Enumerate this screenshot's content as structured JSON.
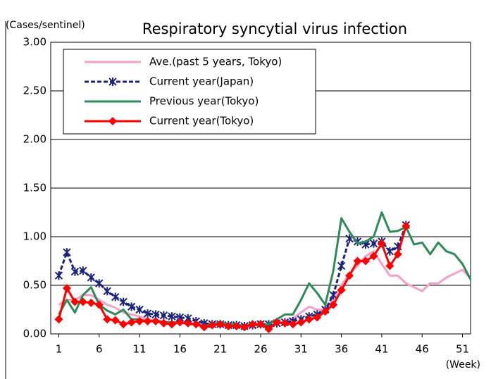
{
  "chart_data": {
    "type": "line",
    "title": "Respiratory syncytial virus infection",
    "y_label": "(Cases/sentinel)",
    "x_label": "(Week)",
    "x": [
      1,
      2,
      3,
      4,
      5,
      6,
      7,
      8,
      9,
      10,
      11,
      12,
      13,
      14,
      15,
      16,
      17,
      18,
      19,
      20,
      21,
      22,
      23,
      24,
      25,
      26,
      27,
      28,
      29,
      30,
      31,
      32,
      33,
      34,
      35,
      36,
      37,
      38,
      39,
      40,
      41,
      42,
      43,
      44,
      45,
      46,
      47,
      48,
      49,
      50,
      51,
      52
    ],
    "xlim": [
      0,
      52
    ],
    "xticks": [
      1,
      6,
      11,
      16,
      21,
      26,
      31,
      36,
      41,
      46,
      51
    ],
    "ylim": [
      0,
      3
    ],
    "yticks": [
      {
        "value": 0,
        "label": "0.00"
      },
      {
        "value": 0.5,
        "label": "0.50"
      },
      {
        "value": 1,
        "label": "1.00"
      },
      {
        "value": 1.5,
        "label": "1.50"
      },
      {
        "value": 2,
        "label": "2.00"
      },
      {
        "value": 2.5,
        "label": "2.50"
      },
      {
        "value": 3,
        "label": "3.00"
      }
    ],
    "grid": true,
    "legend": "top-left",
    "series": [
      {
        "name": "Ave.(past 5 years, Tokyo)",
        "color": "#f5a0c8",
        "marker": "none",
        "dash": false,
        "values": [
          0.3,
          0.35,
          0.35,
          0.4,
          0.4,
          0.35,
          0.3,
          0.27,
          0.22,
          0.2,
          0.18,
          0.15,
          0.14,
          0.13,
          0.12,
          0.12,
          0.11,
          0.1,
          0.09,
          0.09,
          0.09,
          0.08,
          0.08,
          0.08,
          0.08,
          0.08,
          0.09,
          0.1,
          0.12,
          0.16,
          0.22,
          0.28,
          0.25,
          0.25,
          0.35,
          0.5,
          0.62,
          0.7,
          0.8,
          0.85,
          0.72,
          0.6,
          0.6,
          0.52,
          0.48,
          0.44,
          0.52,
          0.52,
          0.58,
          0.62,
          0.66,
          0.57
        ]
      },
      {
        "name": "Current year(Japan)",
        "color": "#1a237e",
        "marker": "star",
        "dash": true,
        "values": [
          0.6,
          0.84,
          0.64,
          0.65,
          0.58,
          0.52,
          0.44,
          0.38,
          0.33,
          0.28,
          0.25,
          0.21,
          0.2,
          0.19,
          0.18,
          0.17,
          0.16,
          0.13,
          0.11,
          0.1,
          0.1,
          0.09,
          0.09,
          0.08,
          0.09,
          0.1,
          0.1,
          0.11,
          0.12,
          0.13,
          0.15,
          0.18,
          0.2,
          0.25,
          0.4,
          0.7,
          0.98,
          0.95,
          0.92,
          0.93,
          0.95,
          0.85,
          0.9,
          1.12,
          null,
          null,
          null,
          null,
          null,
          null,
          null,
          null
        ]
      },
      {
        "name": "Previous year(Tokyo)",
        "color": "#2e8b57",
        "marker": "none",
        "dash": false,
        "values": [
          0.2,
          0.35,
          0.22,
          0.4,
          0.48,
          0.3,
          0.24,
          0.2,
          0.25,
          0.15,
          0.15,
          0.13,
          0.14,
          0.12,
          0.12,
          0.12,
          0.1,
          0.1,
          0.08,
          0.1,
          0.12,
          0.1,
          0.1,
          0.08,
          0.1,
          0.08,
          0.1,
          0.15,
          0.2,
          0.2,
          0.35,
          0.52,
          0.42,
          0.3,
          0.65,
          1.19,
          1.05,
          0.93,
          0.95,
          1.0,
          1.25,
          1.05,
          1.06,
          1.1,
          0.92,
          0.94,
          0.82,
          0.94,
          0.85,
          0.82,
          0.72,
          0.56
        ]
      },
      {
        "name": "Current year(Tokyo)",
        "color": "#ff0000",
        "marker": "diamond",
        "dash": false,
        "values": [
          0.15,
          0.47,
          0.33,
          0.33,
          0.32,
          0.3,
          0.15,
          0.14,
          0.1,
          0.12,
          0.13,
          0.13,
          0.13,
          0.11,
          0.1,
          0.12,
          0.11,
          0.1,
          0.07,
          0.09,
          0.1,
          0.08,
          0.08,
          0.07,
          0.1,
          0.1,
          0.05,
          0.12,
          0.11,
          0.1,
          0.12,
          0.15,
          0.17,
          0.23,
          0.3,
          0.45,
          0.6,
          0.75,
          0.75,
          0.8,
          0.93,
          0.7,
          0.82,
          1.11,
          null,
          null,
          null,
          null,
          null,
          null,
          null,
          null
        ]
      }
    ]
  }
}
